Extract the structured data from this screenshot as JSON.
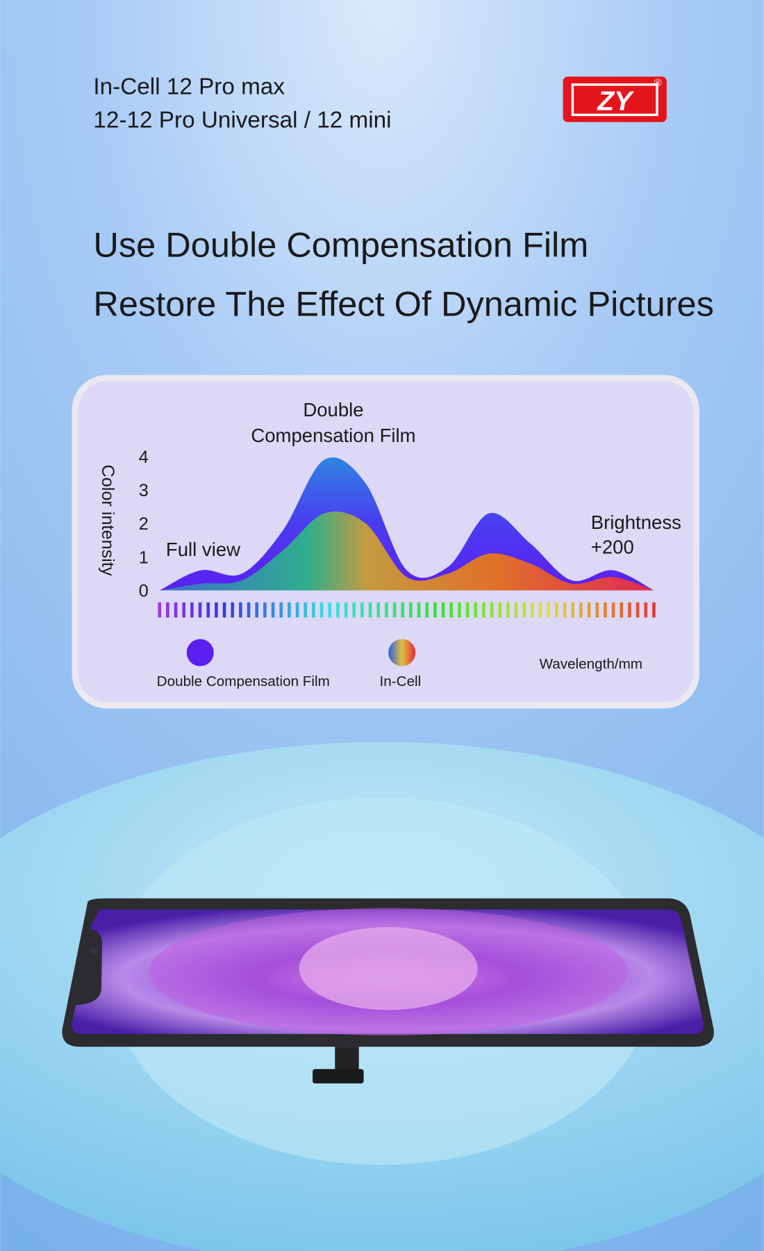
{
  "header": {
    "line1": "In-Cell 12 Pro max",
    "line2": "12-12 Pro Universal / 12 mini",
    "logo": "ZY",
    "logo_mark": "®"
  },
  "headline": {
    "line1": "Use Double Compensation Film",
    "line2": "Restore The Effect Of Dynamic Pictures"
  },
  "chart_data": {
    "type": "area",
    "y_label": "Color intensity",
    "x_label": "Wavelength/mm",
    "annotations": [
      "Double",
      "Compensation Film",
      "Full view",
      "Brightness",
      "+200"
    ],
    "categories": [
      null,
      null,
      null,
      null,
      null,
      null,
      null,
      null,
      null,
      null,
      null,
      null,
      null
    ],
    "ylim": [
      0,
      4
    ],
    "yticks": [
      0,
      1,
      2,
      3,
      4
    ],
    "series": [
      {
        "name": "Double Compensation Film",
        "color": "#5b1ff0",
        "values": [
          0,
          0.6,
          0.5,
          1.8,
          3.9,
          3.2,
          0.6,
          0.7,
          2.3,
          1.4,
          0.3,
          0.6,
          0
        ]
      },
      {
        "name": "In-Cell",
        "color": "#e0702a",
        "values": [
          0,
          0.2,
          0.3,
          1.2,
          2.3,
          2.0,
          0.4,
          0.5,
          1.1,
          0.8,
          0.2,
          0.4,
          0
        ]
      }
    ]
  }
}
